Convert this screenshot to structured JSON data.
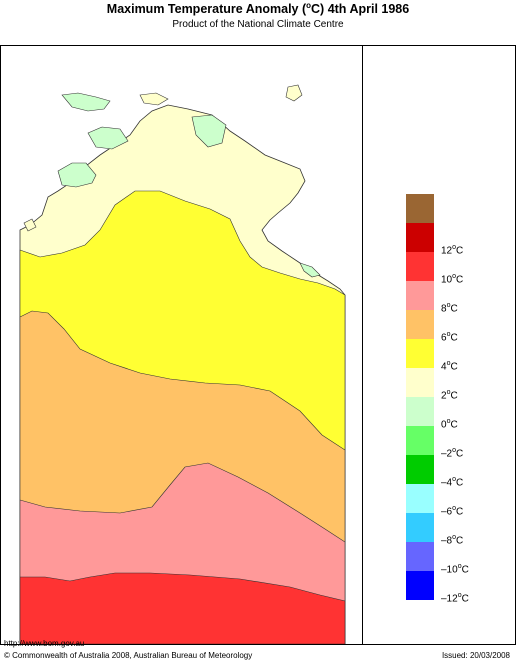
{
  "header": {
    "title_prefix": "Maximum Temperature Anomaly (",
    "title_degree": "o",
    "title_suffix": "C)  4th April 1986",
    "subtitle": "Product of the National Climate Centre"
  },
  "legend": {
    "unit": "C",
    "degree": "o",
    "items": [
      {
        "label": "",
        "color": "#9a6633"
      },
      {
        "label": "12",
        "color": "#cc0000"
      },
      {
        "label": "10",
        "color": "#ff3333"
      },
      {
        "label": "8",
        "color": "#ff9999"
      },
      {
        "label": "6",
        "color": "#ffc266"
      },
      {
        "label": "4",
        "color": "#ffff33"
      },
      {
        "label": "2",
        "color": "#ffffcc"
      },
      {
        "label": "0",
        "color": "#ccffcc"
      },
      {
        "label": "–2",
        "color": "#66ff66"
      },
      {
        "label": "–4",
        "color": "#00cc00"
      },
      {
        "label": "–6",
        "color": "#99ffff"
      },
      {
        "label": "–8",
        "color": "#33ccff"
      },
      {
        "label": "–10",
        "color": "#6666ff"
      },
      {
        "label": "–12",
        "color": "#0000ff"
      }
    ]
  },
  "map": {
    "colors": {
      "band_0_2": "#ffffcc",
      "band_m2_0": "#ccffcc",
      "band_2_4": "#ffff33",
      "band_4_6": "#ffc266",
      "band_6_8": "#ff9999",
      "band_8_10": "#ff3333",
      "outline": "#333333"
    }
  },
  "footer": {
    "url": "http://www.bom.gov.au",
    "copyright": "© Commonwealth of Australia 2008, Australian Bureau of Meteorology",
    "issued": "Issued: 20/03/2008"
  }
}
